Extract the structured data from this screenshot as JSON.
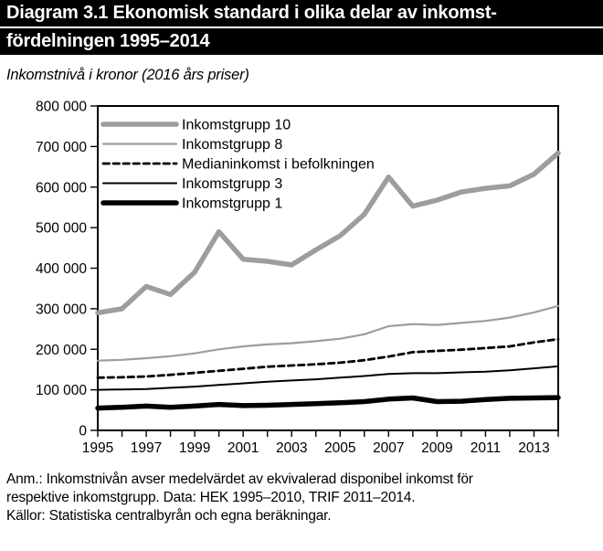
{
  "title": {
    "line1": "Diagram 3.1 Ekonomisk standard i olika delar av inkomst-",
    "line2": "fördelningen 1995–2014"
  },
  "subtitle": "Inkomstnivå i kronor (2016 års priser)",
  "chart_data": {
    "type": "line",
    "title": "Ekonomisk standard i olika delar av inkomstfördelningen 1995–2014",
    "xlabel": "",
    "ylabel": "Inkomstnivå i kronor (2016 års priser)",
    "x": [
      1995,
      1996,
      1997,
      1998,
      1999,
      2000,
      2001,
      2002,
      2003,
      2004,
      2005,
      2006,
      2007,
      2008,
      2009,
      2010,
      2011,
      2012,
      2013,
      2014
    ],
    "x_tick_labels": [
      "1995",
      "1997",
      "1999",
      "2001",
      "2003",
      "2005",
      "2007",
      "2009",
      "2011",
      "2013"
    ],
    "ylim": [
      0,
      800000
    ],
    "y_tick_step": 100000,
    "y_tick_labels": [
      "0",
      "100 000",
      "200 000",
      "300 000",
      "400 000",
      "500 000",
      "600 000",
      "700 000",
      "800 000"
    ],
    "grid": false,
    "legend_position": "top-left-inside",
    "axis_color": "#000000",
    "series": [
      {
        "name": "Inkomstgrupp 10",
        "color": "#9d9d9d",
        "width": 5.5,
        "dash": "",
        "values": [
          290000,
          300000,
          355000,
          335000,
          390000,
          490000,
          422000,
          417000,
          408000,
          445000,
          480000,
          533000,
          625000,
          553000,
          568000,
          588000,
          597000,
          603000,
          632000,
          684000
        ]
      },
      {
        "name": "Inkomstgrupp 8",
        "color": "#9d9d9d",
        "width": 2.2,
        "dash": "",
        "values": [
          172000,
          174000,
          178000,
          183000,
          190000,
          200000,
          207000,
          212000,
          215000,
          220000,
          226000,
          237000,
          257000,
          262000,
          260000,
          265000,
          270000,
          278000,
          291000,
          307000
        ]
      },
      {
        "name": "Medianinkomst i befolkningen",
        "color": "#000000",
        "width": 2.8,
        "dash": "6.5 4.5",
        "values": [
          130000,
          131000,
          133000,
          137000,
          142000,
          147000,
          152000,
          157000,
          160000,
          163000,
          167000,
          173000,
          182000,
          193000,
          196000,
          199000,
          203000,
          207000,
          217000,
          225000
        ]
      },
      {
        "name": "Inkomstgrupp 3",
        "color": "#000000",
        "width": 2,
        "dash": "",
        "values": [
          100000,
          101000,
          102000,
          105000,
          108000,
          112000,
          116000,
          120000,
          123000,
          126000,
          130000,
          134000,
          139000,
          141000,
          141000,
          143000,
          145000,
          148000,
          153000,
          158000
        ]
      },
      {
        "name": "Inkomstgrupp 1",
        "color": "#000000",
        "width": 5.5,
        "dash": "",
        "values": [
          55000,
          57000,
          60000,
          57000,
          60000,
          64000,
          61000,
          62000,
          64000,
          66000,
          68000,
          71000,
          77000,
          80000,
          71000,
          72000,
          76000,
          79000,
          80000,
          81000
        ]
      }
    ]
  },
  "footnotes": {
    "line1": "Anm.: Inkomstnivån avser medelvärdet av ekvivalerad disponibel inkomst för",
    "line2": "respektive inkomstgrupp. Data: HEK 1995–2010, TRIF 2011–2014.",
    "line3": "Källor: Statistiska centralbyrån och egna beräkningar."
  }
}
